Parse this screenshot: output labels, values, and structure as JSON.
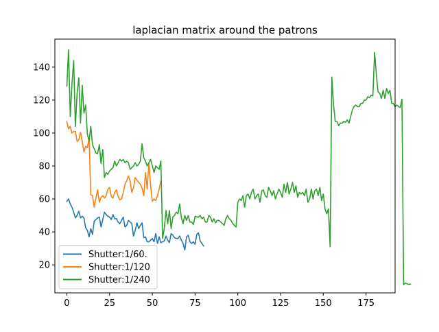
{
  "chart_data": {
    "type": "line",
    "title": "laplacian matrix around the patrons",
    "xlabel": "",
    "ylabel": "",
    "xlim": [
      -7,
      192
    ],
    "ylim": [
      3,
      157
    ],
    "xticks": [
      0,
      25,
      50,
      75,
      100,
      125,
      150,
      175
    ],
    "yticks": [
      20,
      40,
      60,
      80,
      100,
      120,
      140
    ],
    "legend_position": "lower-left",
    "grid": false,
    "series": [
      {
        "name": "Shutter:1/60.",
        "color": "#1f77b4",
        "x0": 0,
        "values": [
          58.5,
          60,
          57,
          55,
          52,
          48.5,
          50,
          52.5,
          48.5,
          49.5,
          48.5,
          42.5,
          41,
          37,
          42,
          38.5,
          46.5,
          47.5,
          48.5,
          49,
          43,
          47.5,
          52,
          50.5,
          49.5,
          49,
          47.5,
          50.5,
          48,
          48,
          46,
          45,
          47,
          49,
          43,
          44,
          47,
          46,
          45,
          37.5,
          41,
          45.5,
          42,
          44,
          45.5,
          36.5,
          37,
          34,
          34,
          35,
          36,
          34,
          39,
          33,
          37,
          33.5,
          34,
          34.5,
          37.5,
          35,
          33.5,
          39,
          38,
          36.5,
          36,
          36,
          37.5,
          35,
          33,
          29,
          37,
          38,
          34,
          33,
          34,
          32.5,
          38.5,
          39.5,
          34.5,
          33,
          31.5
        ]
      },
      {
        "name": "Shutter:1/120",
        "color": "#ff7f0e",
        "x0": 0,
        "values": [
          107,
          102.5,
          104,
          100,
          101,
          101,
          95,
          96,
          100.5,
          95,
          88.5,
          92,
          91,
          97,
          62.5,
          62,
          55,
          60.5,
          65.5,
          58,
          61,
          62,
          60.5,
          62,
          66,
          67,
          61.5,
          60.5,
          64,
          65.5,
          61.5,
          59.5,
          60,
          64,
          69,
          71,
          74,
          71,
          64,
          67,
          73,
          71.5,
          70,
          69,
          66.5,
          62,
          76,
          66,
          82,
          68,
          58.5,
          60,
          59,
          62,
          66,
          71
        ]
      },
      {
        "name": "Shutter:1/240",
        "color": "#2ca02c",
        "x0": 0,
        "values": [
          128.5,
          150.5,
          110,
          130,
          144,
          104,
          124,
          133.5,
          106,
          129,
          112,
          117,
          99.5,
          95,
          104,
          93,
          90.5,
          88,
          87.5,
          93,
          81.5,
          90,
          73,
          76,
          75,
          77,
          78,
          79,
          83,
          80,
          82,
          84,
          83,
          84,
          82,
          83,
          82,
          78,
          79,
          80,
          82,
          80,
          81,
          83,
          93.5,
          85,
          83,
          80,
          82,
          84,
          80,
          76,
          80,
          79,
          78,
          83,
          36,
          42,
          53,
          45,
          53,
          42,
          49,
          50,
          52,
          51,
          57,
          48.5,
          45,
          50,
          47,
          50,
          46,
          46,
          44.5,
          49.5,
          49,
          49,
          50,
          48,
          49,
          46,
          46,
          50,
          49,
          46,
          48,
          45.5,
          47,
          47,
          46,
          45,
          44,
          48,
          50,
          48,
          47,
          45,
          44,
          43,
          58,
          60,
          59,
          62,
          55,
          62,
          63,
          60,
          64,
          66,
          60,
          62,
          63,
          58,
          65,
          65.5,
          62,
          61,
          67,
          65,
          62,
          65,
          60,
          63,
          66,
          64,
          61,
          69,
          64,
          70,
          63,
          66,
          70,
          64,
          68,
          61,
          64,
          63,
          64,
          62,
          66,
          58,
          60,
          66,
          60,
          65,
          66,
          62,
          67,
          59,
          63,
          54,
          51,
          54,
          31,
          134,
          117,
          107,
          107,
          104.5,
          106,
          106,
          107,
          106.5,
          108,
          106,
          110,
          114,
          116,
          117,
          116,
          116,
          118,
          118,
          120,
          120,
          122,
          121.5,
          123,
          122.5,
          149,
          136,
          125,
          124,
          121,
          126,
          121,
          127,
          124,
          126,
          118,
          118,
          116,
          117,
          116,
          115.5,
          120.5,
          8,
          9,
          8.5,
          8.2,
          8.3
        ]
      }
    ]
  }
}
